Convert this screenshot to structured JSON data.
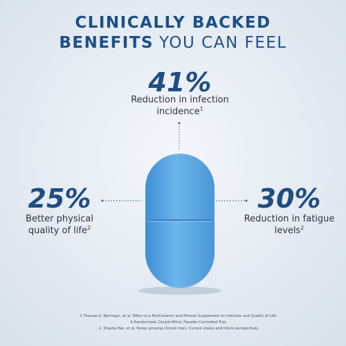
{
  "title": {
    "line1": "CLINICALLY BACKED",
    "line2_bold": "BENEFITS",
    "line2_light": "YOU CAN FEEL"
  },
  "stats": [
    {
      "value": "41%",
      "label": [
        "Reduction in infection",
        "incidence"
      ],
      "ref": "1"
    },
    {
      "value": "25%",
      "label": [
        "Better physical",
        "quality of life"
      ],
      "ref": "2"
    },
    {
      "value": "30%",
      "label": [
        "Reduction in fatigue",
        "levels"
      ],
      "ref": "2"
    }
  ],
  "footnotes": [
    "1 Thomas A. Barringer, et al. Effect of a Multivitamin and Mineral Supplement on Infection and Quality of Life:",
    "A Randomized, Double-Blind, Placebo-Controlled Trial.",
    "2. Shasha Pan, et al. Panax ginseng clinical trials: Current status and future perspectives"
  ]
}
